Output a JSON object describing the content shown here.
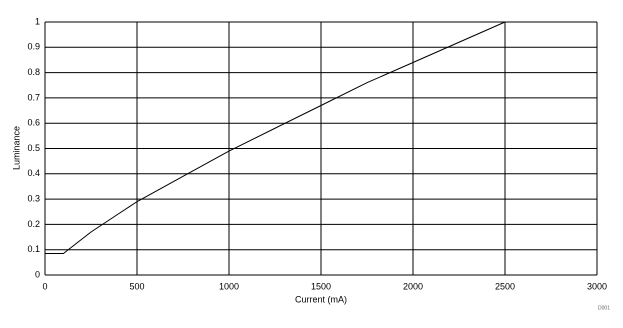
{
  "chart_data": {
    "type": "line",
    "x_label": "Current (mA)",
    "y_label": "Luminance",
    "note": "D001",
    "series": [
      {
        "name": "Luminance",
        "color": "#000000",
        "x": [
          0,
          100,
          250,
          500,
          750,
          1000,
          1250,
          1500,
          1750,
          2000,
          2250,
          2500
        ],
        "values": [
          0.085,
          0.085,
          0.17,
          0.29,
          0.39,
          0.49,
          0.58,
          0.67,
          0.76,
          0.84,
          0.92,
          1.0
        ]
      }
    ],
    "xlim": [
      0,
      3000
    ],
    "xticks": [
      0,
      500,
      1000,
      1500,
      2000,
      2500,
      3000
    ],
    "ylim": [
      0,
      1
    ],
    "yticks": [
      0,
      0.1,
      0.2,
      0.3,
      0.4,
      0.5,
      0.6,
      0.7,
      0.8,
      0.9,
      1
    ],
    "grid": true
  }
}
